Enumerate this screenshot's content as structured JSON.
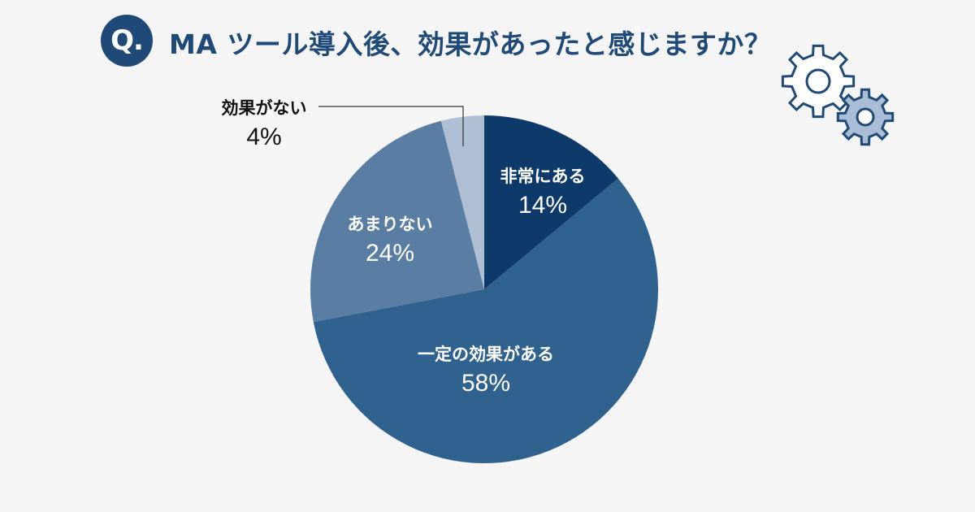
{
  "header": {
    "badge": "Q.",
    "question": "MA ツール導入後、効果があったと感じますか？"
  },
  "chart_data": {
    "type": "pie",
    "title": "MA ツール導入後、効果があったと感じますか？",
    "slices": [
      {
        "label": "非常にある",
        "value": 14,
        "display": "14%",
        "color": "#0e3a6b"
      },
      {
        "label": "一定の効果がある",
        "value": 58,
        "display": "58%",
        "color": "#30628f"
      },
      {
        "label": "あまりない",
        "value": 24,
        "display": "24%",
        "color": "#5a7ea3"
      },
      {
        "label": "効果がない",
        "value": 4,
        "display": "4%",
        "color": "#aebfd3"
      }
    ],
    "start": "top",
    "direction": "clockwise",
    "legend": "none"
  },
  "decor": {
    "gear_outline_color": "#1f4a78",
    "gear_fill_color": "#a9bdd6"
  }
}
